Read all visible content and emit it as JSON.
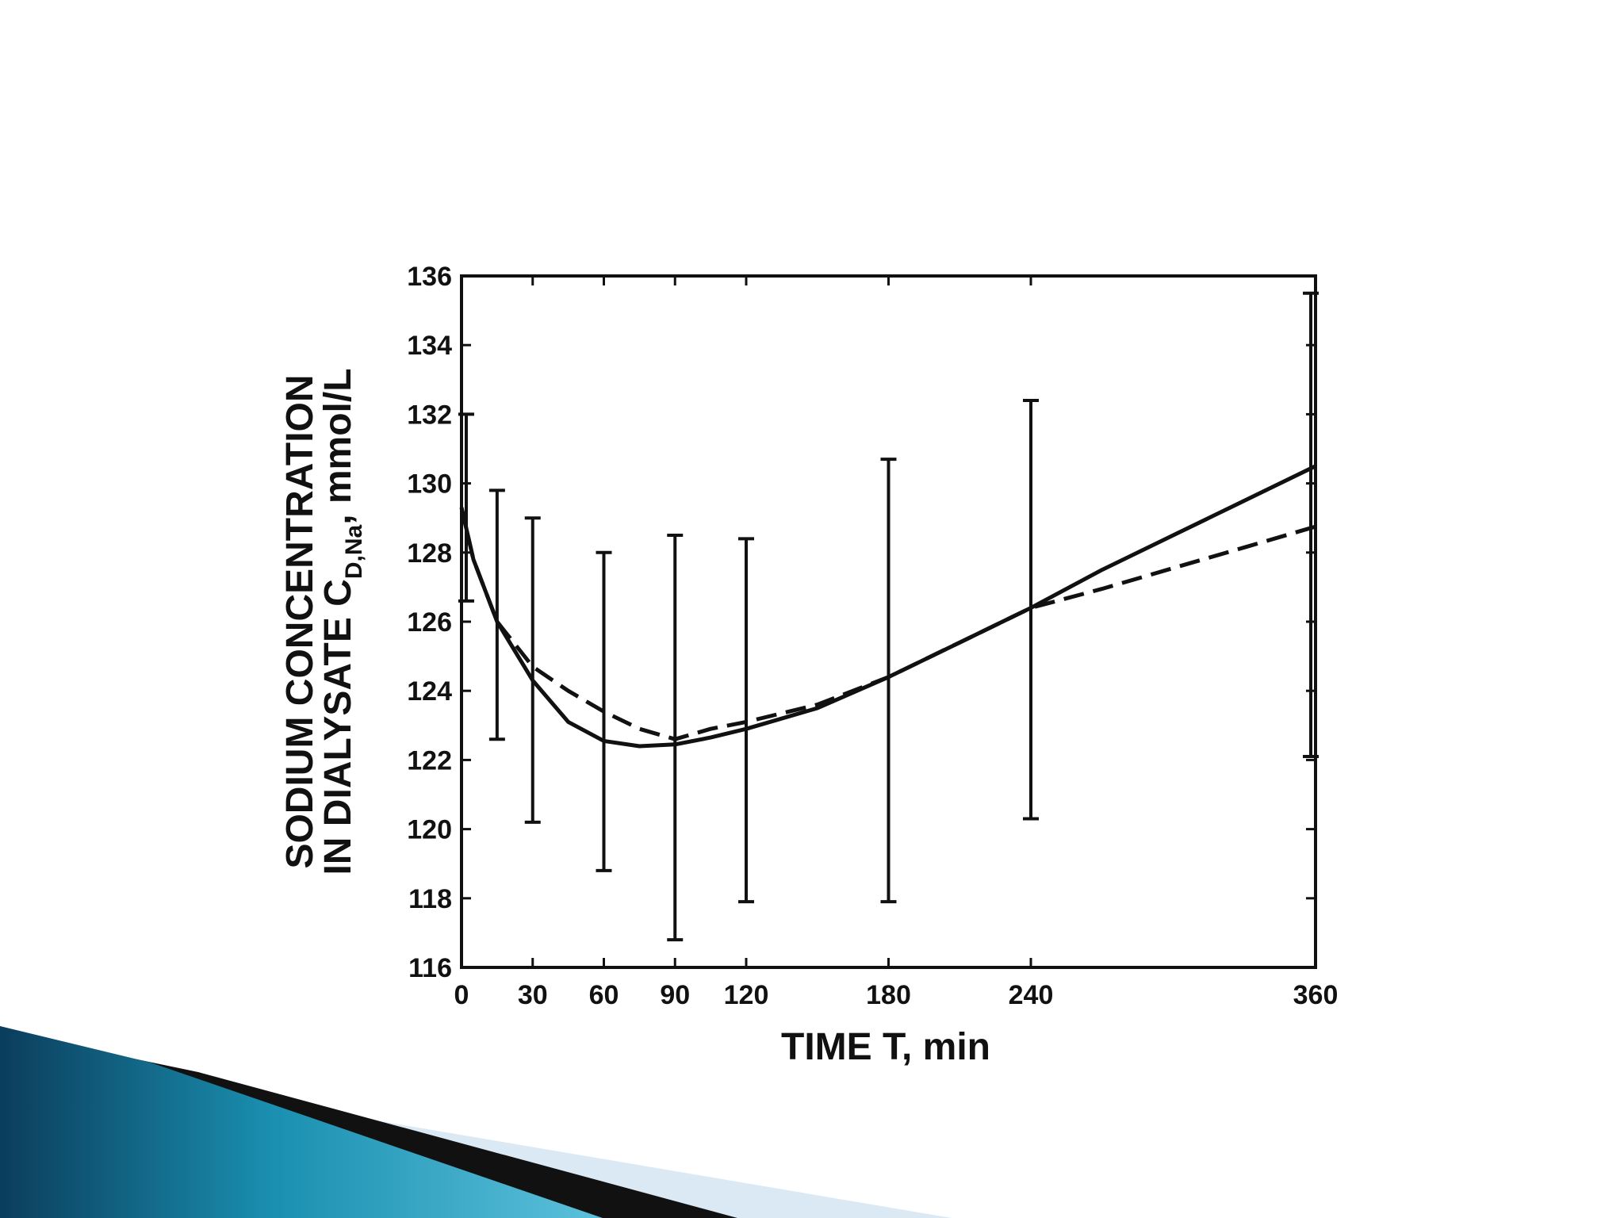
{
  "chart_data": {
    "type": "line",
    "xlabel": "TIME T, min",
    "ylabel": {
      "line1": "SODIUM CONCENTRATION",
      "line2_prefix": "IN DIALYSATE C",
      "line2_subscript": "D,Na",
      "line2_suffix": ", mmol/L"
    },
    "xlim": [
      0,
      360
    ],
    "ylim": [
      116,
      136
    ],
    "x_ticks": [
      0,
      30,
      60,
      90,
      120,
      180,
      240,
      360
    ],
    "y_ticks": [
      116,
      118,
      120,
      122,
      124,
      126,
      128,
      130,
      132,
      134,
      136
    ],
    "grid": false,
    "legend": "none",
    "series": [
      {
        "style": "solid",
        "x": [
          0,
          5,
          15,
          30,
          45,
          60,
          75,
          90,
          105,
          120,
          150,
          180,
          210,
          240,
          270,
          300,
          330,
          360
        ],
        "y": [
          129.3,
          127.8,
          126.0,
          124.3,
          123.1,
          122.55,
          122.4,
          122.45,
          122.65,
          122.9,
          123.5,
          124.4,
          125.4,
          126.4,
          127.5,
          128.5,
          129.5,
          130.5
        ]
      },
      {
        "style": "dashed",
        "x": [
          0,
          5,
          15,
          30,
          45,
          60,
          75,
          90,
          105,
          120,
          150,
          180,
          210,
          240,
          270,
          300,
          330,
          360
        ],
        "y": [
          129.3,
          127.8,
          126.0,
          124.7,
          124.0,
          123.4,
          122.9,
          122.6,
          122.9,
          123.1,
          123.6,
          124.4,
          125.4,
          126.4,
          126.95,
          127.55,
          128.15,
          128.75
        ]
      }
    ],
    "error_bars": [
      {
        "x": 2,
        "low": 126.6,
        "high": 132.0
      },
      {
        "x": 15,
        "low": 122.6,
        "high": 129.8
      },
      {
        "x": 30,
        "low": 120.2,
        "high": 129.0
      },
      {
        "x": 60,
        "low": 118.8,
        "high": 128.0
      },
      {
        "x": 90,
        "low": 116.8,
        "high": 128.5
      },
      {
        "x": 120,
        "low": 117.9,
        "high": 128.4
      },
      {
        "x": 180,
        "low": 117.9,
        "high": 130.7
      },
      {
        "x": 240,
        "low": 120.3,
        "high": 132.4
      },
      {
        "x": 358,
        "low": 122.1,
        "high": 135.5
      }
    ]
  },
  "colors": {
    "ink": "#111111",
    "ribbon_dark": "#0b3d5c",
    "ribbon_mid": "#1a8fb0",
    "ribbon_light": "#5cc1dc",
    "ribbon_pale": "#dbe9f4",
    "ribbon_black": "#111111"
  }
}
